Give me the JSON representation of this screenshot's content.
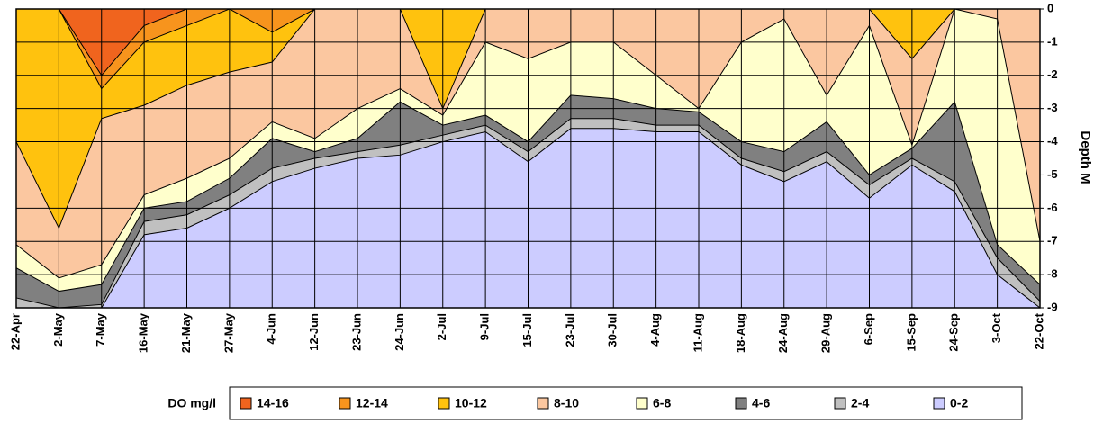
{
  "chart_data": {
    "type": "contour",
    "y_axis_label": "Depth M",
    "legend_title": "DO mg/l",
    "categories": [
      "22-Apr",
      "2-May",
      "7-May",
      "16-May",
      "21-May",
      "27-May",
      "4-Jun",
      "12-Jun",
      "23-Jun",
      "24-Jun",
      "2-Jul",
      "9-Jul",
      "15-Jul",
      "23-Jul",
      "30-Jul",
      "4-Aug",
      "11-Aug",
      "18-Aug",
      "24-Aug",
      "29-Aug",
      "6-Sep",
      "15-Sep",
      "24-Sep",
      "3-Oct",
      "22-Oct"
    ],
    "ylim": [
      -9,
      0
    ],
    "yticks": [
      0,
      -1,
      -2,
      -3,
      -4,
      -5,
      -6,
      -7,
      -8,
      -9
    ],
    "grid": true,
    "y_axis_side": "right",
    "series": [
      {
        "name": "14-16",
        "color": "#f0641e",
        "values": [
          0,
          0,
          -2,
          -0.5,
          0,
          0,
          0,
          0,
          0,
          0,
          0,
          0,
          0,
          0,
          0,
          0,
          0,
          0,
          0,
          0,
          0,
          0,
          0,
          0,
          0
        ]
      },
      {
        "name": "12-14",
        "color": "#f7941d",
        "values": [
          0,
          0,
          -2.4,
          -1,
          -0.5,
          0,
          -0.7,
          0,
          0,
          0,
          0,
          0,
          0,
          0,
          0,
          0,
          0,
          0,
          0,
          0,
          0,
          0,
          0,
          0,
          0
        ]
      },
      {
        "name": "10-12",
        "color": "#ffc20e",
        "values": [
          -4,
          -6.6,
          -3.3,
          -2.9,
          -2.3,
          -1.9,
          -1.6,
          0,
          0,
          0,
          -3,
          0,
          0,
          0,
          0,
          0,
          0,
          0,
          0,
          0,
          0,
          -1.5,
          0,
          0,
          0
        ]
      },
      {
        "name": "8-10",
        "color": "#fbc7a0",
        "values": [
          -7.1,
          -8.1,
          -7.7,
          -5.6,
          -5.1,
          -4.5,
          -3.4,
          -3.9,
          -3,
          -2.4,
          -3.2,
          -1,
          -1.5,
          -1,
          -1,
          -2,
          -3,
          -1,
          -0.3,
          -2.6,
          -0.5,
          -4.1,
          0,
          -0.3,
          -7
        ]
      },
      {
        "name": "6-8",
        "color": "#ffffcc",
        "values": [
          -7.8,
          -8.5,
          -8.3,
          -6,
          -5.8,
          -5.1,
          -3.9,
          -4.3,
          -3.9,
          -2.8,
          -3.5,
          -3.2,
          -4,
          -2.6,
          -2.7,
          -3,
          -3.1,
          -4,
          -4.3,
          -3.4,
          -5,
          -4.2,
          -2.8,
          -7.1,
          -8.3
        ]
      },
      {
        "name": "4-6",
        "color": "#808080",
        "values": [
          -8.7,
          -9,
          -8.9,
          -6.4,
          -6.2,
          -5.6,
          -4.8,
          -4.5,
          -4.3,
          -4.1,
          -3.8,
          -3.5,
          -4.3,
          -3.3,
          -3.3,
          -3.5,
          -3.5,
          -4.5,
          -4.9,
          -4.3,
          -5.3,
          -4.5,
          -5.2,
          -7.5,
          -8.8
        ]
      },
      {
        "name": "2-4",
        "color": "#c0c0c0",
        "values": [
          -9,
          -9,
          -9,
          -6.8,
          -6.6,
          -6,
          -5.2,
          -4.8,
          -4.5,
          -4.4,
          -4,
          -3.7,
          -4.6,
          -3.6,
          -3.6,
          -3.7,
          -3.7,
          -4.7,
          -5.2,
          -4.6,
          -5.7,
          -4.7,
          -5.5,
          -8,
          -9
        ]
      },
      {
        "name": "0-2",
        "color": "#ccccff",
        "values": [
          -9,
          -9,
          -9,
          -9,
          -9,
          -9,
          -9,
          -9,
          -9,
          -9,
          -9,
          -9,
          -9,
          -9,
          -9,
          -9,
          -9,
          -9,
          -9,
          -9,
          -9,
          -9,
          -9,
          -9,
          -9
        ]
      }
    ]
  }
}
